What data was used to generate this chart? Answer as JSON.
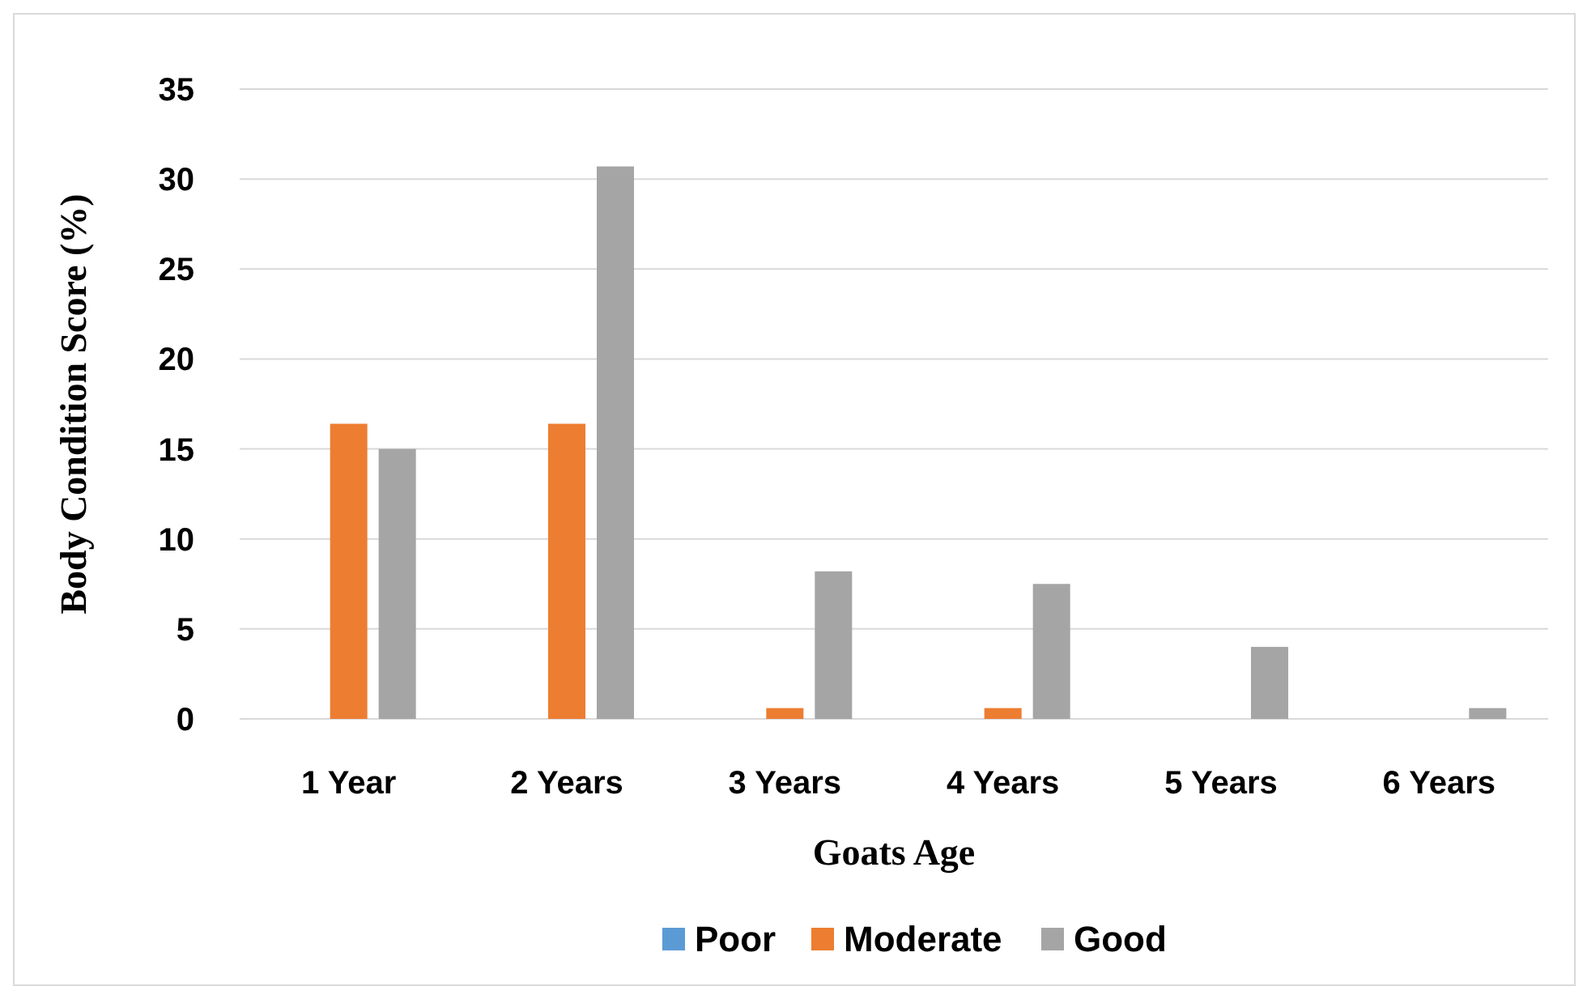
{
  "chart_data": {
    "type": "bar",
    "xlabel": "Goats Age",
    "ylabel": "Body Condition Score (%)",
    "categories": [
      "1 Year",
      "2 Years",
      "3 Years",
      "4 Years",
      "5 Years",
      "6 Years"
    ],
    "series": [
      {
        "name": "Poor",
        "color": "#5b9bd5",
        "values": [
          0,
          0,
          0,
          0,
          0,
          0
        ]
      },
      {
        "name": "Moderate",
        "color": "#ed7d31",
        "values": [
          16.4,
          16.4,
          0.6,
          0.6,
          0,
          0
        ]
      },
      {
        "name": "Good",
        "color": "#a5a5a5",
        "values": [
          15.0,
          30.7,
          8.2,
          7.5,
          4.0,
          0.6
        ]
      }
    ],
    "ylim": [
      0,
      35
    ],
    "yticks": [
      0,
      5,
      10,
      15,
      20,
      25,
      30,
      35
    ],
    "grid": "y",
    "legend": "bottom"
  }
}
